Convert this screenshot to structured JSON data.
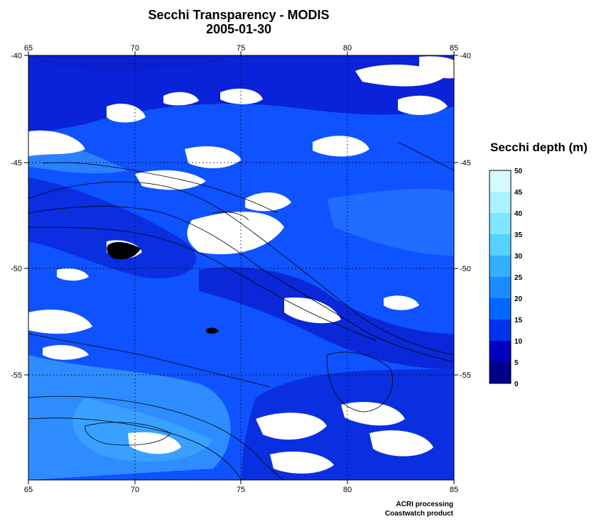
{
  "title": "Secchi Transparency - MODIS",
  "date": "2005-01-30",
  "map": {
    "lon_range": [
      65,
      85
    ],
    "lat_range": [
      -60,
      -40
    ],
    "lon_ticks": [
      "65",
      "70",
      "75",
      "80",
      "85"
    ],
    "lat_ticks": [
      "-40",
      "-45",
      "-50",
      "-55"
    ],
    "grid": "dotted",
    "features": [
      "Secchi depth field",
      "cloud/no-data (white)",
      "bathymetric contours",
      "Kerguelen Islands",
      "Heard Island"
    ]
  },
  "colorbar": {
    "title": "Secchi depth (m)",
    "labels": [
      "50",
      "45",
      "40",
      "35",
      "30",
      "25",
      "20",
      "15",
      "10",
      "5",
      "0"
    ],
    "colors": [
      "#00008b",
      "#0000c0",
      "#0033ee",
      "#0066ff",
      "#1a8cff",
      "#33b0ff",
      "#55d0ff",
      "#7fe6ff",
      "#aaf2ff",
      "#d4faff"
    ]
  },
  "credits": [
    "ACRI processing",
    "Coastwatch product"
  ]
}
